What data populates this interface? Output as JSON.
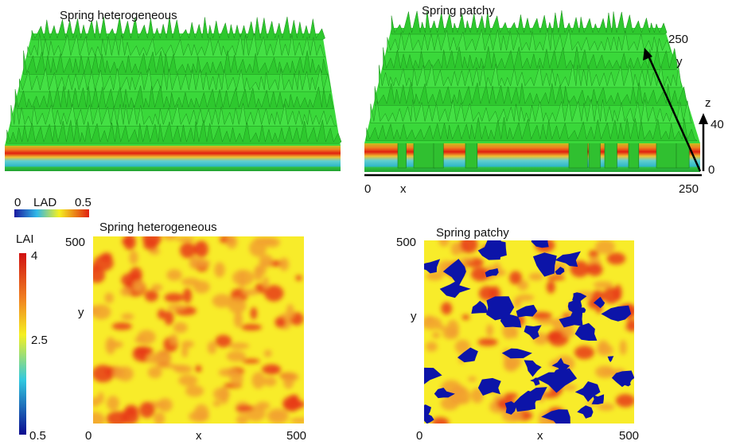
{
  "canopy_views": [
    {
      "title": "Spring heterogeneous"
    },
    {
      "title": "Spring patchy",
      "x_label": "x",
      "x_start": 0,
      "x_end": 250,
      "y_label": "y",
      "y_end": 250,
      "z_label": "z",
      "z_start": 0,
      "z_end": 40
    }
  ],
  "lad_colorbar": {
    "min": 0,
    "label": "LAD",
    "max": 0.5
  },
  "lai_colorbar": {
    "label": "LAI",
    "top": 4,
    "middle": 2.5,
    "bottom": 0.5
  },
  "lai_maps": [
    {
      "title": "Spring heterogeneous",
      "y_end": 500,
      "y_label": "y",
      "x_start": 0,
      "x_label": "x",
      "x_end": 500
    },
    {
      "title": "Spring patchy",
      "y_end": 500,
      "y_label": "y",
      "x_start": 0,
      "x_label": "x",
      "x_end": 500
    }
  ]
}
